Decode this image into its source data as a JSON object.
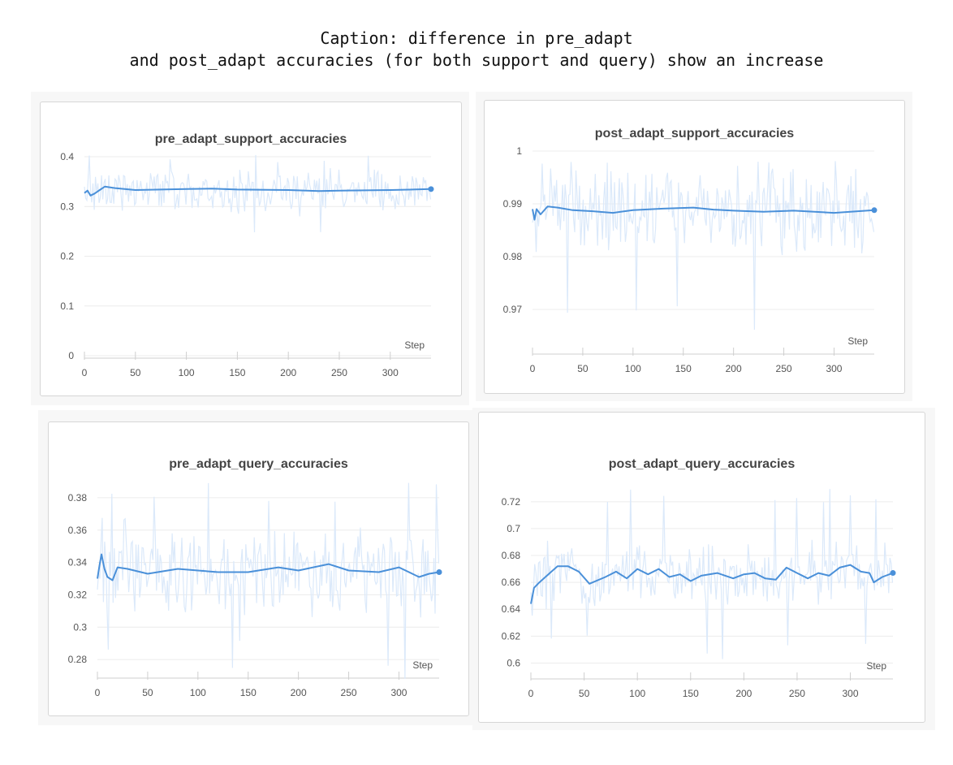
{
  "caption": {
    "line1": "Caption: difference in pre_adapt",
    "line2": "and post_adapt accuracies (for both support and query) show an increase"
  },
  "colors": {
    "line": "#4a90d9",
    "raw": "#dbe9fa",
    "grid": "#ececec",
    "axis": "#cfcfcf"
  },
  "chart_data": [
    {
      "id": "pre-support",
      "type": "line",
      "title": "pre_adapt_support_accuracies",
      "xlabel": "Step",
      "ylabel": "",
      "xlim": [
        0,
        340
      ],
      "ylim": [
        0,
        0.4
      ],
      "xticks": [
        "0",
        "50",
        "100",
        "150",
        "200",
        "250",
        "300"
      ],
      "yticks": [
        "0",
        "0.1",
        "0.2",
        "0.3",
        "0.4"
      ],
      "grid": true,
      "smoothed": {
        "x": [
          0,
          3,
          6,
          10,
          15,
          20,
          30,
          50,
          100,
          125,
          150,
          200,
          230,
          250,
          300,
          340
        ],
        "y": [
          0.327,
          0.332,
          0.322,
          0.326,
          0.333,
          0.34,
          0.337,
          0.333,
          0.335,
          0.336,
          0.334,
          0.333,
          0.331,
          0.332,
          0.333,
          0.335
        ]
      },
      "raw_noise": {
        "mean": 0.333,
        "amplitude": 0.04,
        "low": 0.243,
        "high": 0.405
      }
    },
    {
      "id": "post-support",
      "type": "line",
      "title": "post_adapt_support_accuracies",
      "xlabel": "Step",
      "ylabel": "",
      "xlim": [
        0,
        340
      ],
      "ylim": [
        0.962,
        1.0
      ],
      "xticks": [
        "0",
        "50",
        "100",
        "150",
        "200",
        "250",
        "300"
      ],
      "yticks": [
        "0.97",
        "0.98",
        "0.99",
        "1"
      ],
      "grid": true,
      "smoothed": {
        "x": [
          0,
          2,
          4,
          8,
          15,
          25,
          40,
          60,
          80,
          100,
          130,
          160,
          180,
          200,
          230,
          260,
          300,
          340
        ],
        "y": [
          0.989,
          0.987,
          0.989,
          0.988,
          0.9895,
          0.9893,
          0.9888,
          0.9886,
          0.9883,
          0.9888,
          0.9891,
          0.9893,
          0.9889,
          0.9887,
          0.9885,
          0.9887,
          0.9883,
          0.9888
        ]
      },
      "raw_noise": {
        "mean": 0.9888,
        "amplitude": 0.008,
        "low": 0.963,
        "high": 1.0
      }
    },
    {
      "id": "pre-query",
      "type": "line",
      "title": "pre_adapt_query_accuracies",
      "xlabel": "Step",
      "ylabel": "",
      "xlim": [
        0,
        340
      ],
      "ylim": [
        0.27,
        0.39
      ],
      "xticks": [
        "0",
        "50",
        "100",
        "150",
        "200",
        "250",
        "300"
      ],
      "yticks": [
        "0.28",
        "0.3",
        "0.32",
        "0.34",
        "0.36",
        "0.38"
      ],
      "grid": true,
      "smoothed": {
        "x": [
          0,
          2,
          4,
          7,
          10,
          15,
          20,
          30,
          50,
          80,
          100,
          120,
          150,
          180,
          200,
          230,
          250,
          280,
          300,
          320,
          330,
          340
        ],
        "y": [
          0.33,
          0.338,
          0.345,
          0.336,
          0.331,
          0.329,
          0.337,
          0.336,
          0.333,
          0.336,
          0.335,
          0.334,
          0.334,
          0.337,
          0.335,
          0.339,
          0.335,
          0.334,
          0.337,
          0.331,
          0.333,
          0.334
        ]
      },
      "raw_noise": {
        "mean": 0.335,
        "amplitude": 0.025,
        "low": 0.268,
        "high": 0.39
      }
    },
    {
      "id": "post-query",
      "type": "line",
      "title": "post_adapt_query_accuracies",
      "xlabel": "Step",
      "ylabel": "",
      "xlim": [
        0,
        340
      ],
      "ylim": [
        0.59,
        0.735
      ],
      "xticks": [
        "0",
        "50",
        "100",
        "150",
        "200",
        "250",
        "300"
      ],
      "yticks": [
        "0.6",
        "0.62",
        "0.64",
        "0.66",
        "0.68",
        "0.7",
        "0.72"
      ],
      "grid": true,
      "smoothed": {
        "x": [
          0,
          3,
          8,
          15,
          25,
          35,
          45,
          55,
          70,
          80,
          90,
          100,
          110,
          120,
          130,
          140,
          150,
          160,
          175,
          190,
          200,
          210,
          220,
          230,
          240,
          250,
          260,
          270,
          280,
          290,
          300,
          310,
          318,
          322,
          330,
          340
        ],
        "y": [
          0.644,
          0.656,
          0.66,
          0.665,
          0.672,
          0.672,
          0.668,
          0.659,
          0.664,
          0.668,
          0.663,
          0.67,
          0.666,
          0.67,
          0.664,
          0.666,
          0.661,
          0.665,
          0.667,
          0.663,
          0.666,
          0.667,
          0.663,
          0.662,
          0.671,
          0.667,
          0.663,
          0.667,
          0.665,
          0.671,
          0.673,
          0.668,
          0.667,
          0.66,
          0.664,
          0.667
        ]
      },
      "raw_noise": {
        "mean": 0.666,
        "amplitude": 0.022,
        "low": 0.6,
        "high": 0.73
      }
    }
  ]
}
